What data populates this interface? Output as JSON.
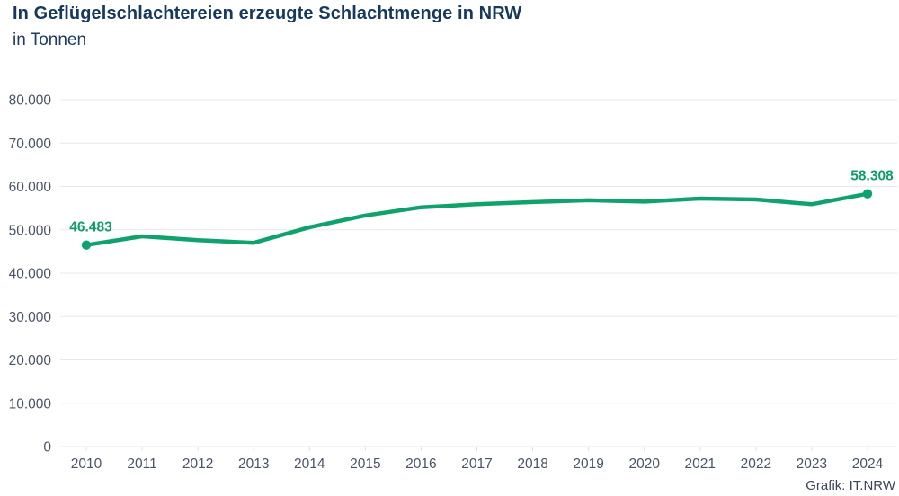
{
  "header": {
    "title": "In Geflügelschlachtereien erzeugte Schlachtmenge in NRW",
    "subtitle": "in Tonnen"
  },
  "footer": {
    "credit": "Grafik: IT.NRW"
  },
  "colors": {
    "line": "#10a26d",
    "marker": "#10a26d",
    "value_label": "#0f9e69",
    "title_text": "#17395f",
    "axis_text": "#4a5468",
    "grid": "#e8e8e8",
    "tick": "#e0e0e0",
    "background": "#ffffff"
  },
  "chart_data": {
    "type": "line",
    "title": "In Geflügelschlachtereien erzeugte Schlachtmenge in NRW",
    "subtitle": "in Tonnen",
    "unit": "Tonnen",
    "x": [
      2010,
      2011,
      2012,
      2013,
      2014,
      2015,
      2016,
      2017,
      2018,
      2019,
      2020,
      2021,
      2022,
      2023,
      2024
    ],
    "values": [
      46483,
      48500,
      47600,
      47000,
      50600,
      53300,
      55200,
      55900,
      56400,
      56800,
      56500,
      57200,
      57000,
      55900,
      58308
    ],
    "ylim": [
      0,
      80000
    ],
    "ytick_step": 10000,
    "ytick_values": [
      0,
      10000,
      20000,
      30000,
      40000,
      50000,
      60000,
      70000,
      80000
    ],
    "ytick_labels": [
      "0",
      "10.000",
      "20.000",
      "30.000",
      "40.000",
      "50.000",
      "60.000",
      "70.000",
      "80.000"
    ],
    "xtick_labels": [
      "2010",
      "2011",
      "2012",
      "2013",
      "2014",
      "2015",
      "2016",
      "2017",
      "2018",
      "2019",
      "2020",
      "2021",
      "2022",
      "2023",
      "2024"
    ],
    "grid": "horizontal",
    "legend": "none",
    "markers": "endpoints-only",
    "annotations": [
      {
        "year": 2010,
        "label": "46.483"
      },
      {
        "year": 2024,
        "label": "58.308"
      }
    ]
  }
}
